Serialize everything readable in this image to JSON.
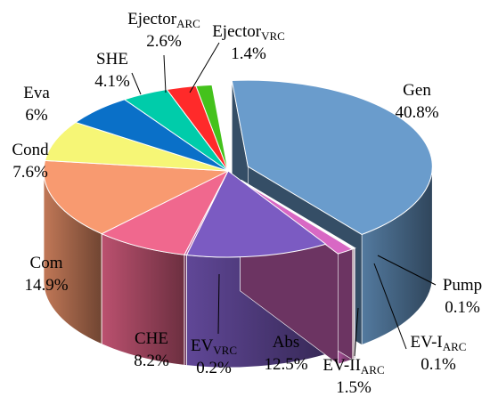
{
  "chart_data": {
    "type": "pie",
    "style": "3d-exploded",
    "legend": "none",
    "slices": [
      {
        "name": "Gen",
        "label_main": "Gen",
        "label_sub": "",
        "value": 40.8,
        "value_label": "40.8%",
        "color": "#6a9ccc",
        "exploded": true
      },
      {
        "name": "Pump",
        "label_main": "Pump",
        "label_sub": "",
        "value": 0.1,
        "value_label": "0.1%",
        "color": "#8a55a8",
        "exploded": true
      },
      {
        "name": "EV-I ARC",
        "label_main": "EV-I",
        "label_sub": "ARC",
        "value": 0.1,
        "value_label": "0.1%",
        "color": "#c0557e",
        "exploded": true
      },
      {
        "name": "EV-II ARC",
        "label_main": "EV-II",
        "label_sub": "ARC",
        "value": 1.5,
        "value_label": "1.5%",
        "color": "#d868c4",
        "exploded": true
      },
      {
        "name": "Abs",
        "label_main": "Abs",
        "label_sub": "",
        "value": 12.5,
        "value_label": "12.5%",
        "color": "#7b5bc2",
        "exploded": false
      },
      {
        "name": "EV VRC",
        "label_main": "EV",
        "label_sub": "VRC",
        "value": 0.2,
        "value_label": "0.2%",
        "color": "#c060a0",
        "exploded": false
      },
      {
        "name": "CHE",
        "label_main": "CHE",
        "label_sub": "",
        "value": 8.2,
        "value_label": "8.2%",
        "color": "#f0688e",
        "exploded": false
      },
      {
        "name": "Com",
        "label_main": "Com",
        "label_sub": "",
        "value": 14.9,
        "value_label": "14.9%",
        "color": "#f89a70",
        "exploded": false
      },
      {
        "name": "Cond",
        "label_main": "Cond",
        "label_sub": "",
        "value": 7.6,
        "value_label": "7.6%",
        "color": "#f6f676",
        "exploded": false
      },
      {
        "name": "Eva",
        "label_main": "Eva",
        "label_sub": "",
        "value": 6,
        "value_label": "6%",
        "color": "#0a70c8",
        "exploded": false
      },
      {
        "name": "SHE",
        "label_main": "SHE",
        "label_sub": "",
        "value": 4.1,
        "value_label": "4.1%",
        "color": "#00ccaa",
        "exploded": false
      },
      {
        "name": "Ejector ARC",
        "label_main": "Ejector",
        "label_sub": "ARC",
        "value": 2.6,
        "value_label": "2.6%",
        "color": "#ff2a2a",
        "exploded": false
      },
      {
        "name": "Ejector VRC",
        "label_main": "Ejector",
        "label_sub": "VRC",
        "value": 1.4,
        "value_label": "1.4%",
        "color": "#44c21c",
        "exploded": false
      }
    ]
  }
}
